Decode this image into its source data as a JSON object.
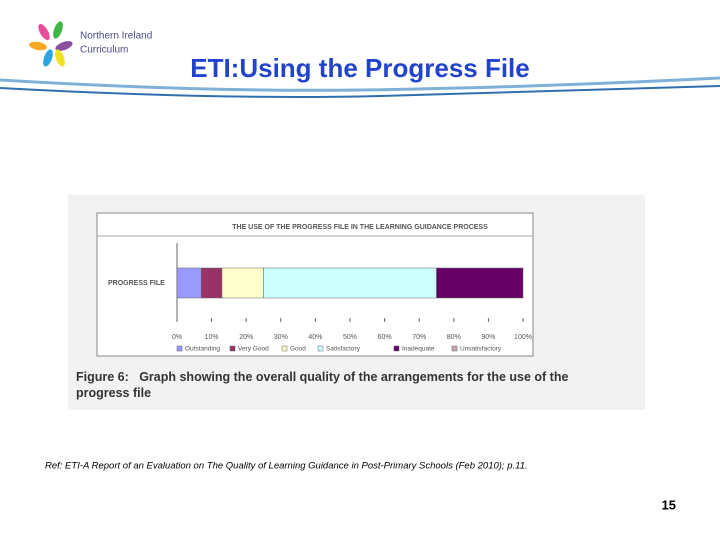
{
  "slide": {
    "logo": [
      "Northern Ireland",
      "Curriculum"
    ],
    "title": "ETI:Using the Progress File",
    "reference": "Ref: ETI-A Report of an Evaluation on The Quality of Learning Guidance in Post-Primary Schools (Feb 2010); p.11.",
    "page_number": "15"
  },
  "chart_data": {
    "type": "stacked-bar-horizontal",
    "title": "THE USE OF THE PROGRESS FILE IN THE LEARNING GUIDANCE PROCESS",
    "caption": "Figure 6:   Graph showing the overall quality of the arrangements for the use of the progress file",
    "categories": [
      "PROGRESS FILE"
    ],
    "series": [
      {
        "name": "Outstanding",
        "color": "#9999ff",
        "values": [
          7
        ]
      },
      {
        "name": "Very Good",
        "color": "#993366",
        "values": [
          6
        ]
      },
      {
        "name": "Good",
        "color": "#ffffcc",
        "values": [
          12
        ]
      },
      {
        "name": "Satisfactory",
        "color": "#ccffff",
        "values": [
          50
        ]
      },
      {
        "name": "Inadequate",
        "color": "#660066",
        "values": [
          25
        ]
      },
      {
        "name": "Unsatisfactory",
        "color": "#c9a3b8",
        "values": [
          0
        ]
      }
    ],
    "xlim": [
      0,
      100
    ],
    "xticks": [
      {
        "value": 0,
        "label": "0%"
      },
      {
        "value": 10,
        "label": "10%"
      },
      {
        "value": 20,
        "label": "20%"
      },
      {
        "value": 30,
        "label": "30%"
      },
      {
        "value": 40,
        "label": "40%"
      },
      {
        "value": 50,
        "label": "50%"
      },
      {
        "value": 60,
        "label": "60%"
      },
      {
        "value": 70,
        "label": "70%"
      },
      {
        "value": 80,
        "label": "80%"
      },
      {
        "value": 90,
        "label": "90%"
      },
      {
        "value": 100,
        "label": "100%"
      }
    ],
    "legend": "bottom"
  }
}
